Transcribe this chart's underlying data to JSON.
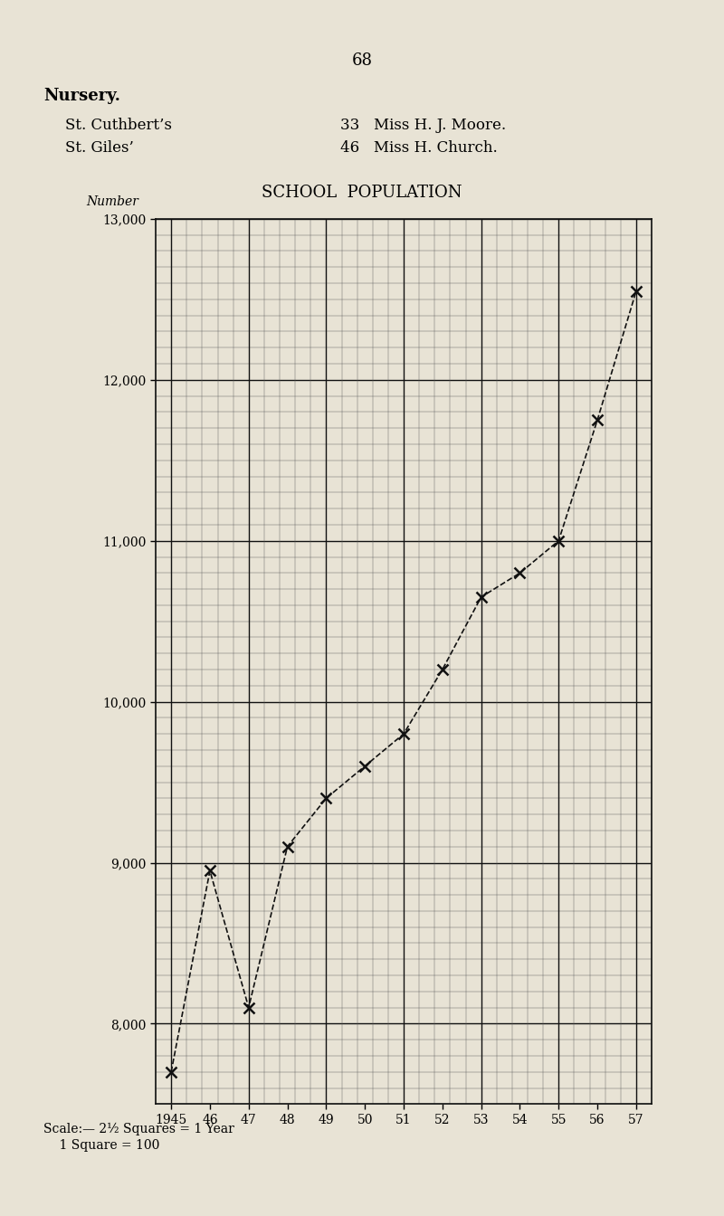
{
  "page_number": "68",
  "title_bold": "Nursery.",
  "schools": [
    {
      "name": "St. Cuthbert’s",
      "number": 33,
      "head": "Miss H. J. Moore."
    },
    {
      "name": "St. Giles’",
      "number": 46,
      "head": "Miss H. Church."
    }
  ],
  "chart_title": "SCHOOL  POPULATION",
  "ylabel": "Number",
  "scale_line1": "Scale:— 2½ Squares = 1 Year",
  "scale_line2": "    1 Square = 100",
  "years": [
    1945,
    1946,
    1947,
    1948,
    1949,
    1950,
    1951,
    1952,
    1953,
    1954,
    1955,
    1956,
    1957
  ],
  "values": [
    7700,
    8950,
    8100,
    9100,
    9400,
    9600,
    9800,
    10200,
    10650,
    10800,
    11000,
    11750,
    12550
  ],
  "ymin": 7500,
  "ymax": 13000,
  "yticks": [
    8000,
    9000,
    10000,
    11000,
    12000,
    13000
  ],
  "ytick_labels": [
    "8,000",
    "9,000",
    "10,000",
    "11,000",
    "12,000",
    "13,000"
  ],
  "paper_color": "#e8e3d5",
  "grid_minor_color": "#555555",
  "grid_major_color": "#111111",
  "line_color": "#111111"
}
